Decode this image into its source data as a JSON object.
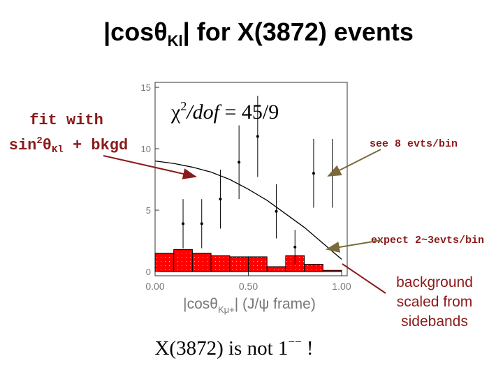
{
  "chart_data": {
    "type": "histogram",
    "title": [
      "|cos",
      "θ",
      "Kl",
      "| for X(3872) events"
    ],
    "x_label": [
      "|cos",
      "θ",
      "Kμ+",
      "| (J/ψ frame)"
    ],
    "xlim": [
      0,
      1.03
    ],
    "ylim": [
      -0.34,
      15.4
    ],
    "xticks": [
      {
        "value": 0,
        "label": "0.00"
      },
      {
        "value": 0.5,
        "label": "0.50"
      },
      {
        "value": 1,
        "label": "1.00"
      }
    ],
    "yticks": [
      0,
      5,
      10,
      15
    ],
    "background": {
      "color": "#ff0000",
      "bins": [
        0,
        0.1,
        0.2,
        0.3,
        0.4,
        0.5,
        0.6,
        0.7,
        0.8,
        0.9,
        1.0
      ],
      "values": [
        1.5,
        1.8,
        1.5,
        1.3,
        1.2,
        1.2,
        0.4,
        1.3,
        0.6,
        0.1
      ]
    },
    "points": {
      "color": "#000000",
      "x": [
        0.15,
        0.25,
        0.35,
        0.45,
        0.55,
        0.65,
        0.75,
        0.85,
        0.95
      ],
      "values": [
        3.9,
        3.9,
        5.9,
        8.9,
        11.0,
        4.9,
        2.0,
        8.0,
        8.0
      ],
      "errors": [
        2.0,
        2.0,
        2.4,
        3.0,
        3.3,
        2.2,
        1.4,
        2.8,
        2.8
      ]
    },
    "fit": {
      "color": "#000000",
      "x": [
        0,
        0.1,
        0.2,
        0.3,
        0.4,
        0.5,
        0.6,
        0.7,
        0.8,
        0.9,
        1.0
      ],
      "values": [
        9.0,
        8.8,
        8.5,
        8.1,
        7.5,
        6.7,
        5.8,
        4.7,
        3.6,
        2.3,
        1.0
      ]
    },
    "annotations": {
      "fit_line1": "fit with",
      "fit_line2": [
        "sin",
        "2",
        "θ",
        "Kl",
        " + bkgd"
      ],
      "chi2": [
        "χ",
        "2",
        "/dof",
        " = 45/9"
      ],
      "see": "see 8 evts/bin",
      "expect": "expect 2~3evts/bin",
      "background": [
        "background",
        "scaled from",
        "sidebands"
      ],
      "conclusion": [
        "X(3872) is not 1",
        "−−",
        " !"
      ]
    }
  }
}
